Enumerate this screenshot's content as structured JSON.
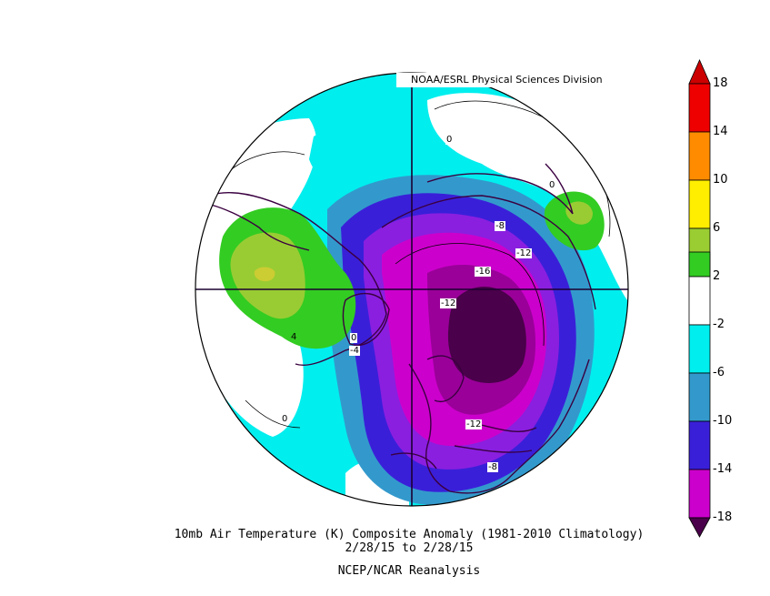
{
  "credit": "NOAA/ESRL Physical Sciences Division",
  "caption": {
    "line1": "10mb Air Temperature (K) Composite Anomaly (1981-2010 Climatology)",
    "line2": "2/28/15  to 2/28/15",
    "line3": "NCEP/NCAR Reanalysis"
  },
  "colorbar": {
    "tick_labels": [
      "18",
      "14",
      "10",
      "6",
      "2",
      "-2",
      "-6",
      "-10",
      "-14",
      "-18"
    ],
    "bins": [
      {
        "range": "14 to 18",
        "color": "#ee0000"
      },
      {
        "range": "10 to 14",
        "color": "#ff8c00"
      },
      {
        "range": "6 to 10",
        "color": "#ffee00"
      },
      {
        "range": "2 to 6",
        "color": "#9acd32"
      },
      {
        "range": "-2 to 2",
        "color": "#ffffff"
      },
      {
        "range": "-6 to -2",
        "color": "#00eeee"
      },
      {
        "range": "-10 to -6",
        "color": "#3399cc"
      },
      {
        "range": "-14 to -10",
        "color": "#3a1fd9"
      },
      {
        "range": "-18 to -14",
        "color": "#cc00cc"
      }
    ],
    "overflow_low_color": "#4a004a",
    "overflow_high_color": "#cc0000"
  },
  "contour_labels": [
    "0",
    "0",
    "0",
    "0",
    "4",
    "-4",
    "-8",
    "-8",
    "-12",
    "-12",
    "-12",
    "-16"
  ],
  "map": {
    "projection": "north polar stereographic",
    "fill_colors": {
      "light_cyan": "#00eeee",
      "steel_blue": "#3399cc",
      "blue": "#3a1fd9",
      "purple": "#8a1fe0",
      "magenta": "#cc00cc",
      "dark_purple": "#4a004a",
      "green": "#33cc22",
      "yellow_green": "#99cc33",
      "pale": "#cccc33"
    }
  }
}
